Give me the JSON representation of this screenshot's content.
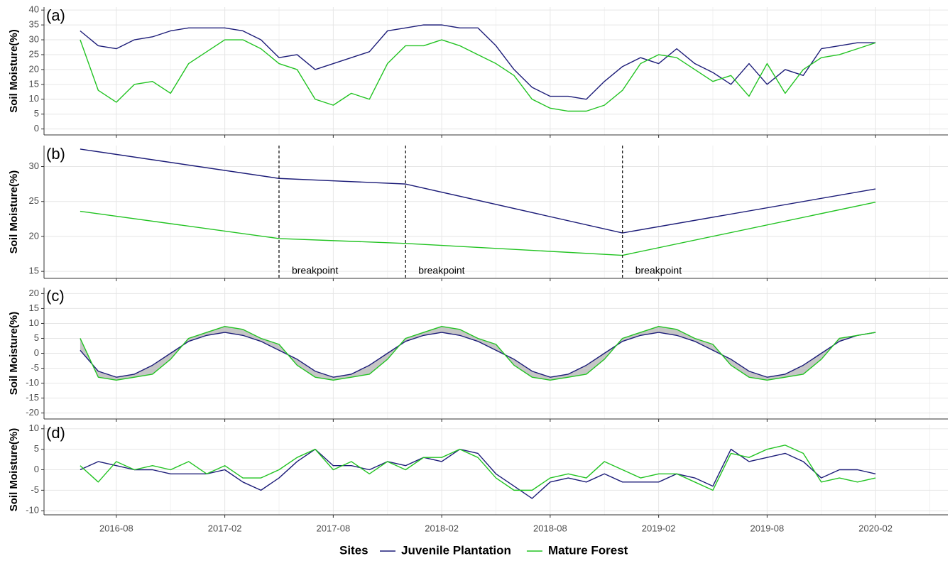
{
  "legend_title": "Sites",
  "chart_data": [
    {
      "type": "line",
      "label": "(a)",
      "y_label": "Soil Moisture(%)",
      "x": [
        "2016-06",
        "2016-07",
        "2016-08",
        "2016-09",
        "2016-10",
        "2016-11",
        "2016-12",
        "2017-01",
        "2017-02",
        "2017-03",
        "2017-04",
        "2017-05",
        "2017-06",
        "2017-07",
        "2017-08",
        "2017-09",
        "2017-10",
        "2017-11",
        "2017-12",
        "2018-01",
        "2018-02",
        "2018-03",
        "2018-04",
        "2018-05",
        "2018-06",
        "2018-07",
        "2018-08",
        "2018-09",
        "2018-10",
        "2018-11",
        "2018-12",
        "2019-01",
        "2019-02",
        "2019-03",
        "2019-04",
        "2019-05",
        "2019-06",
        "2019-07",
        "2019-08",
        "2019-09",
        "2019-10",
        "2019-11",
        "2019-12",
        "2020-01",
        "2020-02"
      ],
      "series": [
        {
          "name": "Juvenile Plantation",
          "color": "#1c1c78",
          "values": [
            33,
            28,
            27,
            30,
            31,
            33,
            34,
            34,
            34,
            33,
            30,
            24,
            25,
            20,
            22,
            24,
            26,
            33,
            34,
            35,
            35,
            34,
            34,
            28,
            20,
            14,
            11,
            11,
            10,
            16,
            21,
            24,
            22,
            27,
            22,
            19,
            15,
            22,
            15,
            20,
            18,
            27,
            28,
            29,
            29
          ]
        },
        {
          "name": "Mature Forest",
          "color": "#22c322",
          "values": [
            30,
            13,
            9,
            15,
            16,
            12,
            22,
            26,
            30,
            30,
            27,
            22,
            20,
            10,
            8,
            12,
            10,
            22,
            28,
            28,
            30,
            28,
            25,
            22,
            18,
            10,
            7,
            6,
            6,
            8,
            13,
            22,
            25,
            24,
            20,
            16,
            18,
            11,
            22,
            12,
            20,
            24,
            25,
            27,
            29
          ]
        }
      ],
      "xlim": [
        "2016-04",
        "2020-06"
      ],
      "xticks": [
        "2016-08",
        "2017-02",
        "2017-08",
        "2018-02",
        "2018-08",
        "2019-02",
        "2019-08",
        "2020-02"
      ],
      "ylim": [
        -2,
        41
      ],
      "yticks": [
        0,
        5,
        10,
        15,
        20,
        25,
        30,
        35,
        40
      ],
      "grid": true
    },
    {
      "type": "line",
      "label": "(b)",
      "y_label": "Soil Moisture(%)",
      "x": [
        "2016-06",
        "2017-05",
        "2017-12",
        "2018-12",
        "2020-02"
      ],
      "series": [
        {
          "color": "#1c1c78",
          "values": [
            32.5,
            28.3,
            27.5,
            20.5,
            26.8
          ]
        },
        {
          "color": "#22c322",
          "values": [
            23.6,
            19.7,
            19.0,
            17.3,
            24.9
          ]
        }
      ],
      "annotations": [
        {
          "x": "2017-05",
          "label": "breakpoint"
        },
        {
          "x": "2017-12",
          "label": "breakpoint"
        },
        {
          "x": "2018-12",
          "label": "breakpoint"
        }
      ],
      "xlim": [
        "2016-04",
        "2020-06"
      ],
      "xticks": [
        "2016-08",
        "2017-02",
        "2017-08",
        "2018-02",
        "2018-08",
        "2019-02",
        "2019-08",
        "2020-02"
      ],
      "ylim": [
        14,
        33
      ],
      "yticks": [
        15,
        20,
        25,
        30
      ],
      "grid": true
    },
    {
      "type": "line",
      "label": "(c)",
      "y_label": "Soil Moisture(%)",
      "x": [
        "2016-06",
        "2016-07",
        "2016-08",
        "2016-09",
        "2016-10",
        "2016-11",
        "2016-12",
        "2017-01",
        "2017-02",
        "2017-03",
        "2017-04",
        "2017-05",
        "2017-06",
        "2017-07",
        "2017-08",
        "2017-09",
        "2017-10",
        "2017-11",
        "2017-12",
        "2018-01",
        "2018-02",
        "2018-03",
        "2018-04",
        "2018-05",
        "2018-06",
        "2018-07",
        "2018-08",
        "2018-09",
        "2018-10",
        "2018-11",
        "2018-12",
        "2019-01",
        "2019-02",
        "2019-03",
        "2019-04",
        "2019-05",
        "2019-06",
        "2019-07",
        "2019-08",
        "2019-09",
        "2019-10",
        "2019-11",
        "2019-12",
        "2020-01",
        "2020-02"
      ],
      "series": [
        {
          "color": "#1c1c78",
          "values": [
            1,
            -6,
            -8,
            -7,
            -4,
            0,
            4,
            6,
            7,
            6,
            4,
            1,
            -2,
            -6,
            -8,
            -7,
            -4,
            0,
            4,
            6,
            7,
            6,
            4,
            1,
            -2,
            -6,
            -8,
            -7,
            -4,
            0,
            4,
            6,
            7,
            6,
            4,
            1,
            -2,
            -6,
            -8,
            -7,
            -4,
            0,
            4,
            6,
            7
          ]
        },
        {
          "color": "#22c322",
          "values": [
            5,
            -8,
            -9,
            -8,
            -7,
            -2,
            5,
            7,
            9,
            8,
            5,
            3,
            -4,
            -8,
            -9,
            -8,
            -7,
            -2,
            5,
            7,
            9,
            8,
            5,
            3,
            -4,
            -8,
            -9,
            -8,
            -7,
            -2,
            5,
            7,
            9,
            8,
            5,
            3,
            -4,
            -8,
            -9,
            -8,
            -7,
            -2,
            5,
            6,
            7
          ]
        }
      ],
      "fill_between": true,
      "band_color": "#c6c6c6",
      "xlim": [
        "2016-04",
        "2020-06"
      ],
      "xticks": [
        "2016-08",
        "2017-02",
        "2017-08",
        "2018-02",
        "2018-08",
        "2019-02",
        "2019-08",
        "2020-02"
      ],
      "ylim": [
        -22,
        22
      ],
      "yticks": [
        -20,
        -15,
        -10,
        -5,
        0,
        5,
        10,
        15,
        20
      ],
      "grid": true
    },
    {
      "type": "line",
      "label": "(d)",
      "y_label": "Soil Moisture(%)",
      "x": [
        "2016-06",
        "2016-07",
        "2016-08",
        "2016-09",
        "2016-10",
        "2016-11",
        "2016-12",
        "2017-01",
        "2017-02",
        "2017-03",
        "2017-04",
        "2017-05",
        "2017-06",
        "2017-07",
        "2017-08",
        "2017-09",
        "2017-10",
        "2017-11",
        "2017-12",
        "2018-01",
        "2018-02",
        "2018-03",
        "2018-04",
        "2018-05",
        "2018-06",
        "2018-07",
        "2018-08",
        "2018-09",
        "2018-10",
        "2018-11",
        "2018-12",
        "2019-01",
        "2019-02",
        "2019-03",
        "2019-04",
        "2019-05",
        "2019-06",
        "2019-07",
        "2019-08",
        "2019-09",
        "2019-10",
        "2019-11",
        "2019-12",
        "2020-01",
        "2020-02"
      ],
      "series": [
        {
          "color": "#1c1c78",
          "values": [
            0,
            2,
            1,
            0,
            0,
            -1,
            -1,
            -1,
            0,
            -3,
            -5,
            -2,
            2,
            5,
            1,
            1,
            0,
            2,
            1,
            3,
            2,
            5,
            4,
            -1,
            -4,
            -7,
            -3,
            -2,
            -3,
            -1,
            -3,
            -3,
            -3,
            -1,
            -2,
            -4,
            5,
            2,
            3,
            4,
            2,
            -2,
            0,
            0,
            -1
          ]
        },
        {
          "color": "#22c322",
          "values": [
            1,
            -3,
            2,
            0,
            1,
            0,
            2,
            -1,
            1,
            -2,
            -2,
            0,
            3,
            5,
            0,
            2,
            -1,
            2,
            0,
            3,
            3,
            5,
            3,
            -2,
            -5,
            -5,
            -2,
            -1,
            -2,
            2,
            0,
            -2,
            -1,
            -1,
            -3,
            -5,
            4,
            3,
            5,
            6,
            4,
            -3,
            -2,
            -3,
            -2
          ]
        }
      ],
      "xlim": [
        "2016-04",
        "2020-06"
      ],
      "xticks": [
        "2016-08",
        "2017-02",
        "2017-08",
        "2018-02",
        "2018-08",
        "2019-02",
        "2019-08",
        "2020-02"
      ],
      "ylim": [
        -11,
        11
      ],
      "yticks": [
        -10,
        -5,
        0,
        5,
        10
      ],
      "grid": true
    }
  ]
}
